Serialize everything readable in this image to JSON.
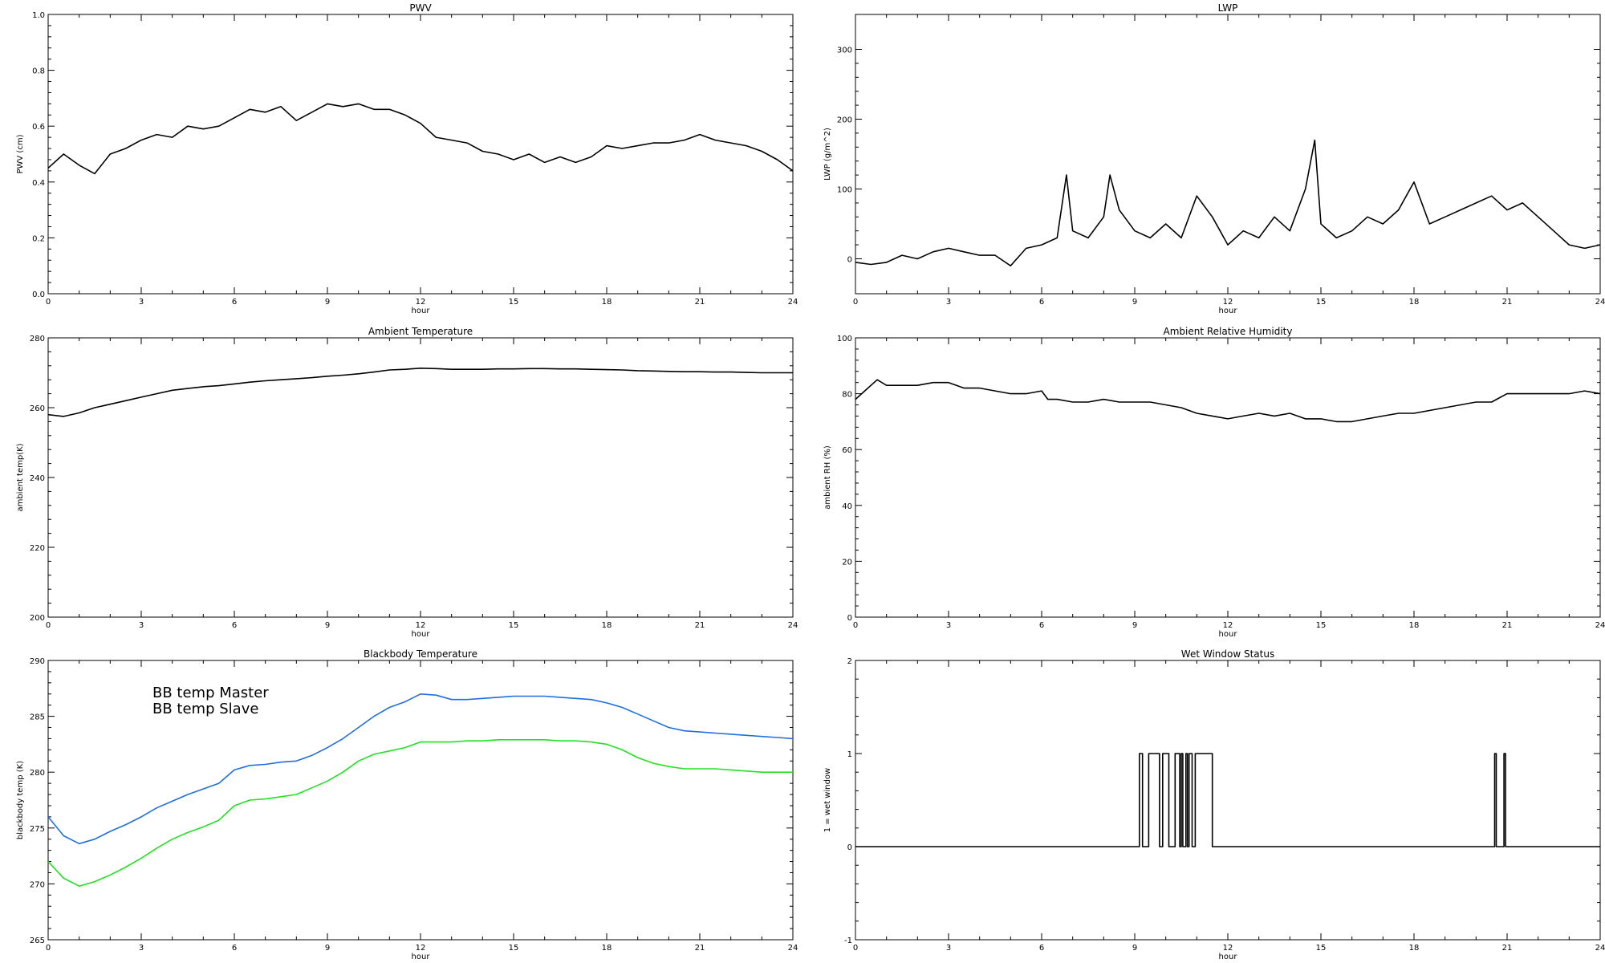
{
  "chart_data": [
    {
      "type": "line",
      "title": "PWV",
      "xlabel": "hour",
      "ylabel": "PWV (cm)",
      "xlim": [
        0,
        24
      ],
      "ylim": [
        0.0,
        1.0
      ],
      "xticks": [
        0,
        3,
        6,
        9,
        12,
        15,
        18,
        21,
        24
      ],
      "xtick_labels": [
        "0",
        "3",
        "6",
        "9",
        "12",
        "15",
        "18",
        "21",
        "24"
      ],
      "yticks": [
        0.0,
        0.2,
        0.4,
        0.6,
        0.8,
        1.0
      ],
      "ytick_labels": [
        "0.0",
        "0.2",
        "0.4",
        "0.6",
        "0.8",
        "1.0"
      ],
      "series": [
        {
          "color": "#000000",
          "x": [
            0,
            0.5,
            1,
            1.5,
            2,
            2.5,
            3,
            3.5,
            4,
            4.5,
            5,
            5.5,
            6,
            6.5,
            7,
            7.5,
            8,
            8.5,
            9,
            9.5,
            10,
            10.5,
            11,
            11.5,
            12,
            12.5,
            13,
            13.5,
            14,
            14.5,
            15,
            15.5,
            16,
            16.5,
            17,
            17.5,
            18,
            18.5,
            19,
            19.5,
            20,
            20.5,
            21,
            21.5,
            22,
            22.5,
            23,
            23.5,
            24
          ],
          "y": [
            0.45,
            0.5,
            0.46,
            0.43,
            0.5,
            0.52,
            0.55,
            0.57,
            0.56,
            0.6,
            0.59,
            0.6,
            0.63,
            0.66,
            0.65,
            0.67,
            0.62,
            0.65,
            0.68,
            0.67,
            0.68,
            0.66,
            0.66,
            0.64,
            0.61,
            0.56,
            0.55,
            0.54,
            0.51,
            0.5,
            0.48,
            0.5,
            0.47,
            0.49,
            0.47,
            0.49,
            0.53,
            0.52,
            0.53,
            0.54,
            0.54,
            0.55,
            0.57,
            0.55,
            0.54,
            0.53,
            0.51,
            0.48,
            0.44
          ]
        }
      ]
    },
    {
      "type": "line",
      "title": "LWP",
      "xlabel": "hour",
      "ylabel": "LWP (g/m^2)",
      "xlim": [
        0,
        24
      ],
      "ylim": [
        -50,
        350
      ],
      "xticks": [
        0,
        3,
        6,
        9,
        12,
        15,
        18,
        21,
        24
      ],
      "xtick_labels": [
        "0",
        "3",
        "6",
        "9",
        "12",
        "15",
        "18",
        "21",
        "24"
      ],
      "yticks": [
        0,
        100,
        200,
        300
      ],
      "ytick_labels": [
        "0",
        "100",
        "200",
        "300"
      ],
      "series": [
        {
          "color": "#000000",
          "x": [
            0,
            0.5,
            1,
            1.5,
            2,
            2.5,
            3,
            3.5,
            4,
            4.5,
            5,
            5.5,
            6,
            6.5,
            6.8,
            7,
            7.5,
            8,
            8.2,
            8.5,
            9,
            9.5,
            10,
            10.5,
            11,
            11.5,
            12,
            12.5,
            13,
            13.5,
            14,
            14.5,
            14.8,
            15,
            15.5,
            16,
            16.5,
            17,
            17.5,
            18,
            18.5,
            19,
            19.5,
            20,
            20.5,
            21,
            21.5,
            22,
            22.5,
            23,
            23.5,
            24
          ],
          "y": [
            -5,
            -8,
            -5,
            5,
            0,
            10,
            15,
            10,
            5,
            5,
            -10,
            15,
            20,
            30,
            120,
            40,
            30,
            60,
            120,
            70,
            40,
            30,
            50,
            30,
            90,
            60,
            20,
            40,
            30,
            60,
            40,
            100,
            170,
            50,
            30,
            40,
            60,
            50,
            70,
            110,
            50,
            60,
            70,
            80,
            90,
            70,
            80,
            60,
            40,
            20,
            15,
            20
          ]
        }
      ]
    },
    {
      "type": "line",
      "title": "Ambient Temperature",
      "xlabel": "hour",
      "ylabel": "ambient temp(K)",
      "xlim": [
        0,
        24
      ],
      "ylim": [
        200,
        280
      ],
      "xticks": [
        0,
        3,
        6,
        9,
        12,
        15,
        18,
        21,
        24
      ],
      "xtick_labels": [
        "0",
        "3",
        "6",
        "9",
        "12",
        "15",
        "18",
        "21",
        "24"
      ],
      "yticks": [
        200,
        220,
        240,
        260,
        280
      ],
      "ytick_labels": [
        "200",
        "220",
        "240",
        "260",
        "280"
      ],
      "series": [
        {
          "color": "#000000",
          "x": [
            0,
            0.5,
            1,
            1.5,
            2,
            2.5,
            3,
            3.5,
            4,
            4.5,
            5,
            5.5,
            6,
            6.5,
            7,
            7.5,
            8,
            8.5,
            9,
            9.5,
            10,
            10.5,
            11,
            11.5,
            12,
            12.5,
            13,
            13.5,
            14,
            14.5,
            15,
            15.5,
            16,
            16.5,
            17,
            17.5,
            18,
            18.5,
            19,
            19.5,
            20,
            20.5,
            21,
            21.5,
            22,
            22.5,
            23,
            23.5,
            24
          ],
          "y": [
            258,
            257.5,
            258.5,
            260,
            261,
            262,
            263,
            264,
            265,
            265.5,
            266,
            266.3,
            266.8,
            267.3,
            267.7,
            268,
            268.3,
            268.6,
            269,
            269.3,
            269.7,
            270.2,
            270.8,
            271,
            271.3,
            271.2,
            271,
            271,
            271,
            271.1,
            271.1,
            271.2,
            271.2,
            271.1,
            271.1,
            271,
            270.9,
            270.8,
            270.6,
            270.5,
            270.4,
            270.3,
            270.3,
            270.2,
            270.2,
            270.1,
            270,
            270,
            270
          ]
        }
      ]
    },
    {
      "type": "line",
      "title": "Ambient Relative Humidity",
      "xlabel": "hour",
      "ylabel": "ambient RH (%)",
      "xlim": [
        0,
        24
      ],
      "ylim": [
        0,
        100
      ],
      "xticks": [
        0,
        3,
        6,
        9,
        12,
        15,
        18,
        21,
        24
      ],
      "xtick_labels": [
        "0",
        "3",
        "6",
        "9",
        "12",
        "15",
        "18",
        "21",
        "24"
      ],
      "yticks": [
        0,
        20,
        40,
        60,
        80,
        100
      ],
      "ytick_labels": [
        "0",
        "20",
        "40",
        "60",
        "80",
        "100"
      ],
      "series": [
        {
          "color": "#000000",
          "x": [
            0,
            0.3,
            0.7,
            1,
            1.5,
            2,
            2.5,
            3,
            3.5,
            4,
            4.5,
            5,
            5.5,
            6,
            6.2,
            6.5,
            7,
            7.5,
            8,
            8.5,
            9,
            9.5,
            10,
            10.5,
            11,
            11.5,
            12,
            12.5,
            13,
            13.5,
            14,
            14.5,
            15,
            15.5,
            16,
            16.5,
            17,
            17.5,
            18,
            18.5,
            19,
            19.5,
            20,
            20.5,
            21,
            21.5,
            22,
            22.5,
            23,
            23.5,
            24
          ],
          "y": [
            78,
            81,
            85,
            83,
            83,
            83,
            84,
            84,
            82,
            82,
            81,
            80,
            80,
            81,
            78,
            78,
            77,
            77,
            78,
            77,
            77,
            77,
            76,
            75,
            73,
            72,
            71,
            72,
            73,
            72,
            73,
            71,
            71,
            70,
            70,
            71,
            72,
            73,
            73,
            74,
            75,
            76,
            77,
            77,
            80,
            80,
            80,
            80,
            80,
            81,
            80
          ]
        }
      ]
    },
    {
      "type": "line",
      "title": "Blackbody Temperature",
      "xlabel": "hour",
      "ylabel": "blackbody temp (K)",
      "xlim": [
        0,
        24
      ],
      "ylim": [
        265,
        290
      ],
      "xticks": [
        0,
        3,
        6,
        9,
        12,
        15,
        18,
        21,
        24
      ],
      "xtick_labels": [
        "0",
        "3",
        "6",
        "9",
        "12",
        "15",
        "18",
        "21",
        "24"
      ],
      "yticks": [
        265,
        270,
        275,
        280,
        285,
        290
      ],
      "ytick_labels": [
        "265",
        "270",
        "275",
        "280",
        "285",
        "290"
      ],
      "legend": "top-left",
      "series": [
        {
          "name": "BB temp Master",
          "color": "#1f6fe0",
          "x": [
            0,
            0.5,
            1,
            1.5,
            2,
            2.5,
            3,
            3.5,
            4,
            4.5,
            5,
            5.5,
            6,
            6.5,
            7,
            7.5,
            8,
            8.5,
            9,
            9.5,
            10,
            10.5,
            11,
            11.5,
            12,
            12.5,
            13,
            13.5,
            14,
            14.5,
            15,
            15.5,
            16,
            16.5,
            17,
            17.5,
            18,
            18.5,
            19,
            19.5,
            20,
            20.5,
            21,
            21.5,
            22,
            22.5,
            23,
            23.5,
            24
          ],
          "y": [
            276,
            274.3,
            273.6,
            274,
            274.7,
            275.3,
            276,
            276.8,
            277.4,
            278,
            278.5,
            279,
            280.2,
            280.6,
            280.7,
            280.9,
            281,
            281.5,
            282.2,
            283,
            284,
            285,
            285.8,
            286.3,
            287,
            286.9,
            286.5,
            286.5,
            286.6,
            286.7,
            286.8,
            286.8,
            286.8,
            286.7,
            286.6,
            286.5,
            286.2,
            285.8,
            285.2,
            284.6,
            284,
            283.7,
            283.6,
            283.5,
            283.4,
            283.3,
            283.2,
            283.1,
            283
          ]
        },
        {
          "name": "BB temp Slave",
          "color": "#22e022",
          "x": [
            0,
            0.5,
            1,
            1.5,
            2,
            2.5,
            3,
            3.5,
            4,
            4.5,
            5,
            5.5,
            6,
            6.5,
            7,
            7.5,
            8,
            8.5,
            9,
            9.5,
            10,
            10.5,
            11,
            11.5,
            12,
            12.5,
            13,
            13.5,
            14,
            14.5,
            15,
            15.5,
            16,
            16.5,
            17,
            17.5,
            18,
            18.5,
            19,
            19.5,
            20,
            20.5,
            21,
            21.5,
            22,
            22.5,
            23,
            23.5,
            24
          ],
          "y": [
            272,
            270.5,
            269.8,
            270.2,
            270.8,
            271.5,
            272.3,
            273.2,
            274,
            274.6,
            275.1,
            275.7,
            277,
            277.5,
            277.6,
            277.8,
            278,
            278.6,
            279.2,
            280,
            281,
            281.6,
            281.9,
            282.2,
            282.7,
            282.7,
            282.7,
            282.8,
            282.8,
            282.9,
            282.9,
            282.9,
            282.9,
            282.8,
            282.8,
            282.7,
            282.5,
            282,
            281.3,
            280.8,
            280.5,
            280.3,
            280.3,
            280.3,
            280.2,
            280.1,
            280,
            280,
            280
          ]
        }
      ]
    },
    {
      "type": "line",
      "title": "Wet Window Status",
      "xlabel": "hour",
      "ylabel": "1 = wet window",
      "xlim": [
        0,
        24
      ],
      "ylim": [
        -1,
        2
      ],
      "xticks": [
        0,
        3,
        6,
        9,
        12,
        15,
        18,
        21,
        24
      ],
      "xtick_labels": [
        "0",
        "3",
        "6",
        "9",
        "12",
        "15",
        "18",
        "21",
        "24"
      ],
      "yticks": [
        -1,
        0,
        1,
        2
      ],
      "ytick_labels": [
        "-1",
        "0",
        "1",
        "2"
      ],
      "series": [
        {
          "color": "#000000",
          "step": true,
          "x": [
            0,
            9.15,
            9.15,
            9.25,
            9.25,
            9.45,
            9.45,
            9.8,
            9.8,
            9.9,
            9.9,
            10.1,
            10.1,
            10.3,
            10.3,
            10.45,
            10.45,
            10.5,
            10.5,
            10.55,
            10.55,
            10.65,
            10.65,
            10.7,
            10.7,
            10.75,
            10.75,
            10.85,
            10.85,
            10.95,
            10.95,
            11.5,
            11.5,
            11.55,
            11.55,
            20.6,
            20.6,
            20.65,
            20.65,
            20.9,
            20.9,
            20.95,
            20.95,
            24
          ],
          "y": [
            0,
            0,
            1,
            1,
            0,
            0,
            1,
            1,
            0,
            0,
            1,
            1,
            0,
            0,
            1,
            1,
            0,
            0,
            1,
            1,
            0,
            0,
            1,
            1,
            0,
            0,
            1,
            1,
            0,
            0,
            1,
            1,
            0,
            0,
            0,
            0,
            1,
            1,
            0,
            0,
            1,
            1,
            0,
            0
          ]
        }
      ]
    }
  ]
}
